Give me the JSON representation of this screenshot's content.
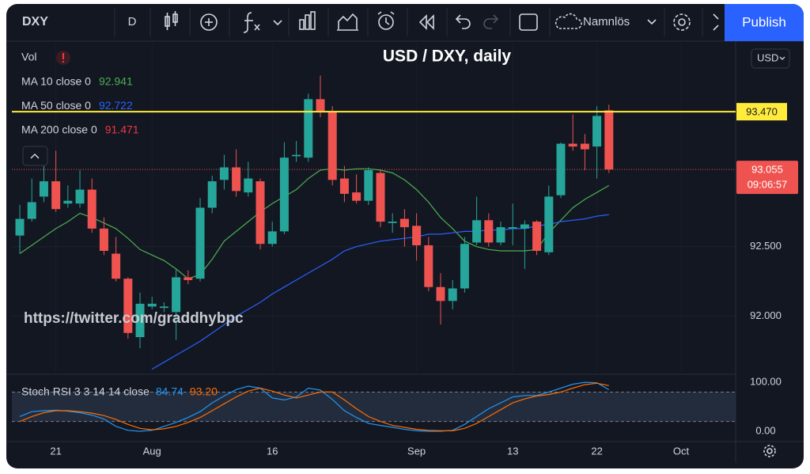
{
  "ui": {
    "symbol": "DXY",
    "interval": "D",
    "layout_name": "Namnlös",
    "publish": "Publish",
    "currency": "USD",
    "watermark": "https://twitter.com/graddhybpc",
    "vol": "Vol"
  },
  "chart_data": [
    {
      "type": "candlestick",
      "title": "USD / DXY, daily",
      "series": [
        {
          "name": "DXY",
          "up_color": "#26a69a",
          "down_color": "#ef5350",
          "open": [
            92.58,
            92.7,
            92.86,
            92.97,
            92.81,
            92.81,
            92.91,
            92.63,
            92.45,
            92.27,
            91.85,
            92.07,
            92.06,
            92.03,
            92.28,
            92.27,
            92.78,
            92.98,
            93.07,
            92.89,
            92.97,
            92.52,
            92.61,
            93.15,
            93.14,
            93.56,
            93.47,
            92.99,
            92.89,
            92.83,
            93.03,
            92.67,
            92.7,
            92.65,
            92.51,
            92.21,
            92.11,
            92.2,
            92.53,
            92.69,
            92.53,
            92.63,
            92.63,
            92.68,
            92.46,
            92.87,
            93.24,
            93.24,
            93.22,
            93.48
          ],
          "high": [
            92.8,
            92.99,
            93.08,
            93.19,
            92.94,
            93.05,
            92.99,
            92.71,
            92.57,
            92.28,
            92.17,
            92.14,
            92.1,
            92.34,
            92.33,
            92.85,
            93.01,
            93.16,
            93.2,
            93.11,
            92.99,
            92.68,
            93.25,
            93.26,
            93.6,
            93.73,
            93.51,
            93.08,
            93.02,
            93.07,
            93.05,
            92.74,
            92.77,
            92.74,
            92.57,
            92.31,
            92.26,
            92.57,
            92.86,
            92.74,
            92.68,
            92.81,
            92.69,
            92.69,
            92.94,
            93.25,
            93.45,
            93.31,
            93.51,
            93.52
          ],
          "low": [
            92.45,
            92.68,
            92.82,
            92.75,
            92.78,
            92.78,
            92.6,
            92.44,
            92.25,
            91.84,
            91.77,
            92.05,
            92.03,
            91.83,
            92.23,
            92.25,
            92.74,
            92.91,
            92.86,
            92.86,
            92.48,
            92.5,
            92.59,
            93.11,
            93.11,
            93.43,
            92.94,
            92.82,
            92.81,
            92.8,
            92.64,
            92.6,
            92.5,
            92.4,
            92.18,
            91.94,
            92.05,
            92.17,
            92.51,
            92.5,
            92.51,
            92.51,
            92.34,
            92.44,
            92.44,
            92.85,
            93.19,
            93.05,
            92.99,
            93.03
          ],
          "close": [
            92.7,
            92.82,
            92.97,
            92.77,
            92.83,
            92.91,
            92.63,
            92.47,
            92.27,
            91.88,
            92.09,
            92.09,
            92.07,
            92.28,
            92.26,
            92.78,
            92.97,
            93.07,
            92.9,
            92.99,
            92.52,
            92.61,
            93.14,
            93.16,
            93.56,
            93.47,
            92.98,
            92.88,
            92.83,
            93.05,
            92.68,
            92.68,
            92.64,
            92.51,
            92.21,
            92.11,
            92.2,
            92.52,
            92.69,
            92.53,
            92.64,
            92.64,
            92.66,
            92.47,
            92.86,
            93.24,
            93.22,
            93.2,
            93.44,
            93.055
          ]
        }
      ],
      "lines": [
        {
          "name": "MA 10 close 0",
          "color": "#4caf50",
          "legend_value": 92.941,
          "values": [
            92.45,
            92.51,
            92.57,
            92.63,
            92.68,
            92.74,
            92.71,
            92.67,
            92.63,
            92.56,
            92.48,
            92.44,
            92.4,
            92.34,
            92.27,
            92.3,
            92.41,
            92.54,
            92.61,
            92.68,
            92.75,
            92.81,
            92.86,
            92.91,
            92.99,
            93.05,
            93.06,
            93.05,
            93.06,
            93.06,
            93.05,
            93.03,
            92.98,
            92.91,
            92.82,
            92.71,
            92.63,
            92.54,
            92.5,
            92.48,
            92.47,
            92.47,
            92.47,
            92.48,
            92.6,
            92.69,
            92.78,
            92.84,
            92.89,
            92.94
          ]
        },
        {
          "name": "MA 50 close 0",
          "color": "#2962ff",
          "legend_value": 92.722,
          "values": [
            null,
            null,
            null,
            null,
            null,
            null,
            null,
            null,
            null,
            null,
            null,
            91.62,
            91.67,
            91.72,
            91.77,
            91.82,
            91.88,
            91.94,
            92.0,
            92.05,
            92.1,
            92.16,
            92.21,
            92.26,
            92.31,
            92.36,
            92.41,
            92.47,
            92.5,
            92.52,
            92.54,
            92.55,
            92.56,
            92.57,
            92.59,
            92.59,
            92.6,
            92.61,
            92.61,
            92.62,
            92.62,
            92.63,
            92.63,
            92.65,
            92.66,
            92.68,
            92.69,
            92.7,
            92.72,
            92.73
          ]
        },
        {
          "name": "MA 200 close 0",
          "color": "#f23645",
          "legend_value": 91.471
        }
      ],
      "hlines": [
        {
          "value": 93.47,
          "label": "93.470",
          "color": "#ffeb3b"
        }
      ],
      "last_price": 93.055,
      "countdown": "09:06:57",
      "ylim": [
        91.6,
        93.96
      ],
      "yticks": [
        {
          "value": 92.5,
          "label": "92.500"
        },
        {
          "value": 92,
          "label": "92.000"
        }
      ],
      "xlim": [
        -0.66,
        59.54
      ],
      "xticks": [
        {
          "value": 3,
          "label": "21"
        },
        {
          "value": 11,
          "label": "Aug"
        },
        {
          "value": 21,
          "label": "16"
        },
        {
          "value": 33,
          "label": "Sep"
        },
        {
          "value": 41,
          "label": "13"
        },
        {
          "value": 48,
          "label": "22"
        },
        {
          "value": 55,
          "label": "Oct"
        }
      ]
    },
    {
      "type": "line",
      "title": "Stoch RSI 3 3 14 14 close",
      "series": [
        {
          "name": "%K",
          "color": "#2196f3",
          "legend_value": 84.74,
          "values": [
            30,
            40,
            42,
            43,
            41,
            38,
            33,
            25,
            10,
            2,
            0,
            2,
            10,
            18,
            28,
            40,
            58,
            72,
            85,
            92,
            88,
            68,
            64,
            70,
            88,
            84,
            65,
            42,
            28,
            16,
            12,
            8,
            4,
            1,
            0,
            0,
            2,
            14,
            30,
            46,
            58,
            70,
            73,
            73,
            80,
            88,
            96,
            100,
            99,
            84.74
          ]
        },
        {
          "name": "%D",
          "color": "#ff6d00",
          "legend_value": {
            "value": 93.2,
            "label": "93.20"
          },
          "values": [
            20,
            30,
            38,
            42,
            42,
            40,
            37,
            32,
            24,
            14,
            6,
            3,
            5,
            10,
            18,
            28,
            42,
            56,
            70,
            82,
            88,
            82,
            74,
            68,
            74,
            80,
            80,
            64,
            46,
            30,
            20,
            12,
            8,
            4,
            2,
            1,
            1,
            6,
            16,
            30,
            44,
            58,
            66,
            72,
            75,
            80,
            88,
            95,
            98,
            93.2
          ]
        }
      ],
      "bands": [
        20,
        80
      ],
      "ylim": [
        -21,
        113
      ],
      "yticks": [
        {
          "value": 100,
          "label": "100.00"
        },
        {
          "value": 0,
          "label": "0.00"
        }
      ]
    }
  ]
}
